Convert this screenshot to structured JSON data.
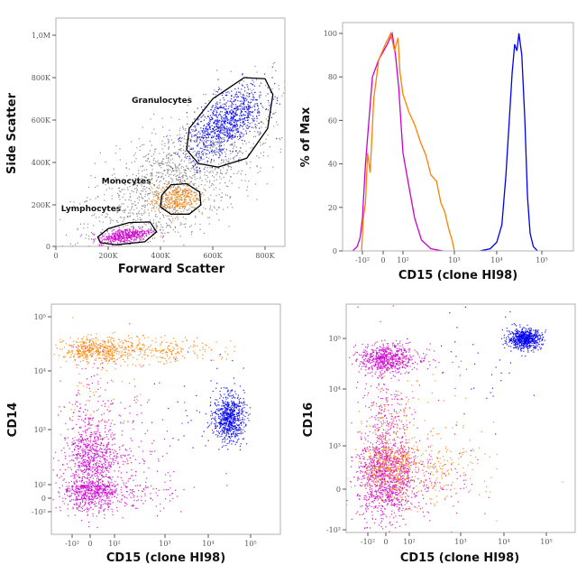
{
  "colors": {
    "lymphocytes": "#cc00cc",
    "monocytes": "#ff8000",
    "granulocytes": "#0000ee",
    "ungated": "#7a7a7a",
    "frame": "#b0b0b0"
  },
  "chart_data": [
    {
      "type": "scatter",
      "xlabel": "Forward Scatter",
      "ylabel": "Side Scatter",
      "x_scale": "linear",
      "y_scale": "linear",
      "xlim": [
        0,
        880000
      ],
      "ylim": [
        0,
        1080000
      ],
      "x_ticks": [
        {
          "v": 0,
          "label": "0"
        },
        {
          "v": 200000,
          "label": "200K"
        },
        {
          "v": 400000,
          "label": "400K"
        },
        {
          "v": 600000,
          "label": "600K"
        },
        {
          "v": 800000,
          "label": "800K"
        }
      ],
      "y_ticks": [
        {
          "v": 0,
          "label": "0"
        },
        {
          "v": 200000,
          "label": "200K"
        },
        {
          "v": 400000,
          "label": "400K"
        },
        {
          "v": 600000,
          "label": "600K"
        },
        {
          "v": 800000,
          "label": "800K"
        },
        {
          "v": 1000000,
          "label": "1,0M"
        }
      ],
      "populations": [
        {
          "color": "ungated",
          "center": [
            450000,
            300000
          ],
          "spread": [
            190000,
            200000
          ],
          "corr": 0.7,
          "n": 1600
        },
        {
          "color": "lymphocytes",
          "center": [
            265000,
            55000
          ],
          "spread": [
            50000,
            20000
          ],
          "corr": 0.5,
          "n": 450
        },
        {
          "color": "monocytes",
          "center": [
            455000,
            230000
          ],
          "spread": [
            45000,
            35000
          ],
          "corr": 0.2,
          "n": 320
        },
        {
          "color": "granulocytes",
          "center": [
            650000,
            590000
          ],
          "spread": [
            75000,
            85000
          ],
          "corr": 0.6,
          "n": 900
        }
      ],
      "gates": [
        {
          "name": "Granulocytes",
          "label_at": [
            290000,
            680000
          ],
          "vertices": [
            [
              500000,
              460000
            ],
            [
              545000,
              395000
            ],
            [
              620000,
              378000
            ],
            [
              730000,
              420000
            ],
            [
              810000,
              560000
            ],
            [
              830000,
              720000
            ],
            [
              800000,
              795000
            ],
            [
              720000,
              800000
            ],
            [
              600000,
              700000
            ],
            [
              510000,
              560000
            ]
          ]
        },
        {
          "name": "Monocytes",
          "label_at": [
            175000,
            300000
          ],
          "vertices": [
            [
              400000,
              190000
            ],
            [
              440000,
              155000
            ],
            [
              510000,
              155000
            ],
            [
              555000,
              200000
            ],
            [
              550000,
              260000
            ],
            [
              500000,
              300000
            ],
            [
              440000,
              295000
            ],
            [
              405000,
              245000
            ]
          ]
        },
        {
          "name": "Lymphocytes",
          "label_at": [
            20000,
            170000
          ],
          "vertices": [
            [
              170000,
              18000
            ],
            [
              230000,
              8000
            ],
            [
              340000,
              22000
            ],
            [
              385000,
              70000
            ],
            [
              360000,
              118000
            ],
            [
              280000,
              115000
            ],
            [
              200000,
              85000
            ],
            [
              160000,
              45000
            ]
          ]
        }
      ]
    },
    {
      "type": "line",
      "xlabel": "CD15 (clone HI98)",
      "ylabel": "% of Max",
      "x_scale": "biexponential",
      "y_scale": "linear",
      "ylim": [
        0,
        100
      ],
      "x_ticks": [
        {
          "v": -100,
          "label": "-10²"
        },
        {
          "v": 0,
          "label": "0"
        },
        {
          "v": 100,
          "label": "10²"
        },
        {
          "v": 1000,
          "label": "10³"
        },
        {
          "v": 10000,
          "label": "10⁴"
        },
        {
          "v": 100000,
          "label": "10⁵"
        }
      ],
      "y_ticks": [
        {
          "v": 0,
          "label": "0"
        },
        {
          "v": 20,
          "label": "20"
        },
        {
          "v": 40,
          "label": "40"
        },
        {
          "v": 60,
          "label": "60"
        },
        {
          "v": 80,
          "label": "80"
        },
        {
          "v": 100,
          "label": "100"
        }
      ],
      "series": [
        {
          "color": "lymphocytes",
          "points": [
            [
              -300,
              0
            ],
            [
              -180,
              2
            ],
            [
              -130,
              6
            ],
            [
              -100,
              15
            ],
            [
              -70,
              40
            ],
            [
              -45,
              62
            ],
            [
              -30,
              80
            ],
            [
              -10,
              88
            ],
            [
              10,
              95
            ],
            [
              25,
              100
            ],
            [
              40,
              90
            ],
            [
              60,
              75
            ],
            [
              80,
              58
            ],
            [
              100,
              45
            ],
            [
              130,
              30
            ],
            [
              170,
              15
            ],
            [
              230,
              5
            ],
            [
              350,
              1
            ],
            [
              600,
              0
            ]
          ]
        },
        {
          "color": "monocytes",
          "points": [
            [
              -110,
              0
            ],
            [
              -90,
              15
            ],
            [
              -70,
              22
            ],
            [
              -55,
              45
            ],
            [
              -40,
              36
            ],
            [
              -25,
              70
            ],
            [
              -10,
              88
            ],
            [
              5,
              95
            ],
            [
              20,
              100
            ],
            [
              35,
              92
            ],
            [
              55,
              98
            ],
            [
              70,
              82
            ],
            [
              100,
              72
            ],
            [
              130,
              64
            ],
            [
              170,
              58
            ],
            [
              220,
              50
            ],
            [
              280,
              44
            ],
            [
              350,
              35
            ],
            [
              450,
              32
            ],
            [
              550,
              22
            ],
            [
              650,
              18
            ],
            [
              780,
              10
            ],
            [
              900,
              5
            ],
            [
              1000,
              0
            ]
          ]
        },
        {
          "color": "granulocytes",
          "points": [
            [
              4000,
              0
            ],
            [
              7000,
              1
            ],
            [
              10000,
              4
            ],
            [
              13000,
              12
            ],
            [
              16000,
              35
            ],
            [
              19000,
              60
            ],
            [
              22000,
              82
            ],
            [
              25000,
              95
            ],
            [
              28000,
              92
            ],
            [
              31000,
              100
            ],
            [
              36000,
              90
            ],
            [
              42000,
              60
            ],
            [
              48000,
              25
            ],
            [
              55000,
              8
            ],
            [
              65000,
              2
            ],
            [
              80000,
              0
            ]
          ]
        }
      ]
    },
    {
      "type": "scatter",
      "xlabel": "CD15 (clone HI98)",
      "ylabel": "CD14",
      "x_scale": "biexponential",
      "y_scale": "biexponential",
      "x_ticks": [
        {
          "v": -100,
          "label": "-10²"
        },
        {
          "v": 0,
          "label": "0"
        },
        {
          "v": 100,
          "label": "10²"
        },
        {
          "v": 1000,
          "label": "10³"
        },
        {
          "v": 10000,
          "label": "10⁴"
        },
        {
          "v": 100000,
          "label": "10⁵"
        }
      ],
      "y_ticks": [
        {
          "v": -100,
          "label": "-10²"
        },
        {
          "v": 0,
          "label": "0"
        },
        {
          "v": 100,
          "label": "10²"
        },
        {
          "v": 1000,
          "label": "10³"
        },
        {
          "v": 10000,
          "label": "10⁴"
        },
        {
          "v": 100000,
          "label": "10⁵"
        }
      ],
      "populations": [
        {
          "color": "monocytes",
          "center": [
            60,
            25000
          ],
          "spread_decades": [
            1.1,
            0.12
          ],
          "n": 700
        },
        {
          "color": "monocytes",
          "center": [
            0,
            3000
          ],
          "spread_decades": [
            0.8,
            0.5
          ],
          "n": 60
        },
        {
          "color": "lymphocytes",
          "center": [
            10,
            80
          ],
          "spread_decades": [
            0.9,
            0.9
          ],
          "n": 1200
        },
        {
          "color": "lymphocytes",
          "center": [
            0,
            300
          ],
          "spread_decades": [
            0.6,
            0.3
          ],
          "n": 400
        },
        {
          "color": "granulocytes",
          "center": [
            30000,
            1600
          ],
          "spread_decades": [
            0.18,
            0.2
          ],
          "n": 700
        },
        {
          "color": "granulocytes",
          "center": [
            8000,
            3000
          ],
          "spread_decades": [
            0.5,
            0.5
          ],
          "n": 40
        }
      ]
    },
    {
      "type": "scatter",
      "xlabel": "CD15 (clone HI98)",
      "ylabel": "CD16",
      "x_scale": "biexponential",
      "y_scale": "biexponential",
      "x_ticks": [
        {
          "v": -100,
          "label": "-10²"
        },
        {
          "v": 0,
          "label": "0"
        },
        {
          "v": 100,
          "label": "10²"
        },
        {
          "v": 1000,
          "label": "10³"
        },
        {
          "v": 10000,
          "label": "10⁴"
        },
        {
          "v": 100000,
          "label": "10⁵"
        }
      ],
      "y_ticks": [
        {
          "v": -1000,
          "label": "-10³"
        },
        {
          "v": 0,
          "label": "0"
        },
        {
          "v": 1000,
          "label": "10³"
        },
        {
          "v": 10000,
          "label": "10⁴"
        },
        {
          "v": 100000,
          "label": "10⁵"
        }
      ],
      "populations": [
        {
          "color": "lymphocytes",
          "center": [
            0,
            40000
          ],
          "spread_decades": [
            0.7,
            0.15
          ],
          "n": 650
        },
        {
          "color": "lymphocytes",
          "center": [
            0,
            3000
          ],
          "spread_decades": [
            0.5,
            0.6
          ],
          "n": 120
        },
        {
          "color": "lymphocytes",
          "center": [
            0,
            50
          ],
          "spread_decades": [
            0.8,
            1.1
          ],
          "n": 1300
        },
        {
          "color": "monocytes",
          "center": [
            30,
            150
          ],
          "spread_decades": [
            0.9,
            0.9
          ],
          "n": 700
        },
        {
          "color": "granulocytes",
          "center": [
            30000,
            100000
          ],
          "spread_decades": [
            0.2,
            0.1
          ],
          "n": 650
        },
        {
          "color": "granulocytes",
          "center": [
            5000,
            30000
          ],
          "spread_decades": [
            0.6,
            0.6
          ],
          "n": 40
        }
      ]
    }
  ]
}
